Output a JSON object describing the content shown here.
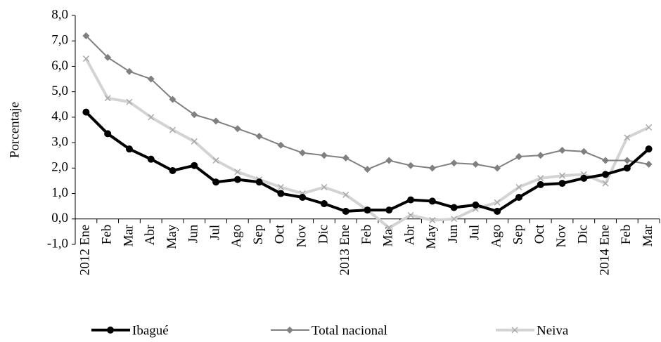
{
  "chart_data": {
    "type": "line",
    "y_label": "Porcentaje",
    "categories": [
      "2012 Ene",
      "Feb",
      "Mar",
      "Abr",
      "May",
      "Jun",
      "Jul",
      "Ago",
      "Sep",
      "Oct",
      "Nov",
      "Dic",
      "2013 Ene",
      "Feb",
      "Mar",
      "Abr",
      "May",
      "Jun",
      "Jul",
      "Ago",
      "Sep",
      "Oct",
      "Nov",
      "Dic",
      "2014 Ene",
      "Feb",
      "Mar"
    ],
    "series": [
      {
        "name": "Ibagué",
        "color": "#000000",
        "marker": "circle",
        "values": [
          4.2,
          3.35,
          2.75,
          2.35,
          1.9,
          2.1,
          1.45,
          1.55,
          1.45,
          1.0,
          0.85,
          0.6,
          0.3,
          0.35,
          0.35,
          0.75,
          0.7,
          0.45,
          0.55,
          0.3,
          0.85,
          1.35,
          1.4,
          1.6,
          1.75,
          2.0,
          2.75
        ]
      },
      {
        "name": "Total nacional",
        "color": "#808080",
        "marker": "diamond",
        "values": [
          7.2,
          6.35,
          5.8,
          5.5,
          4.7,
          4.1,
          3.85,
          3.55,
          3.25,
          2.9,
          2.6,
          2.5,
          2.4,
          1.95,
          2.3,
          2.1,
          2.0,
          2.2,
          2.15,
          2.0,
          2.45,
          2.5,
          2.7,
          2.65,
          2.3,
          2.3,
          2.15
        ]
      },
      {
        "name": "Neiva",
        "color": "#d3d3d3",
        "marker": "x",
        "values": [
          6.3,
          4.75,
          4.6,
          4.0,
          3.5,
          3.05,
          2.3,
          1.85,
          1.55,
          1.25,
          1.0,
          1.25,
          0.95,
          0.35,
          -0.35,
          0.15,
          -0.05,
          0.0,
          0.4,
          0.65,
          1.25,
          1.6,
          1.7,
          1.75,
          1.4,
          3.2,
          3.6
        ]
      }
    ],
    "ylim": [
      -1,
      8
    ],
    "yticks": [
      {
        "value": -1,
        "label": "-1,0"
      },
      {
        "value": 0,
        "label": "0,0"
      },
      {
        "value": 1,
        "label": "1,0"
      },
      {
        "value": 2,
        "label": "2,0"
      },
      {
        "value": 3,
        "label": "3,0"
      },
      {
        "value": 4,
        "label": "4,0"
      },
      {
        "value": 5,
        "label": "5,0"
      },
      {
        "value": 6,
        "label": "6,0"
      },
      {
        "value": 7,
        "label": "7,0"
      },
      {
        "value": 8,
        "label": "8,0"
      }
    ],
    "legend": "bottom"
  }
}
